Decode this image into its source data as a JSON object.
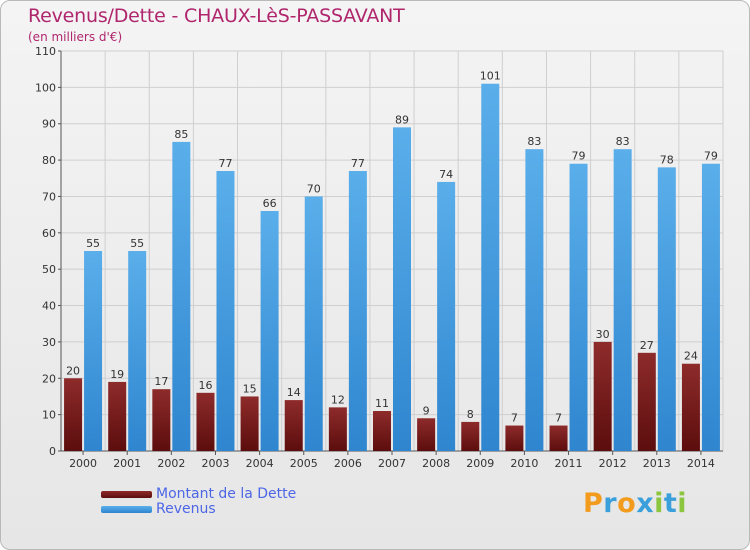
{
  "title": "Revenus/Dette - CHAUX-LèS-PASSAVANT",
  "subtitle": "(en milliers d'€)",
  "legend": {
    "dette_label": "Montant de la Dette",
    "revenus_label": "Revenus"
  },
  "logo_text": "Proxiti",
  "colors": {
    "dette": "#7a1a1a",
    "revenus": "#4a9fe0",
    "title": "#b0266d",
    "legend_text": "#4d66e6"
  },
  "chart_data": {
    "type": "bar",
    "title": "Revenus/Dette - CHAUX-LèS-PASSAVANT",
    "subtitle": "(en milliers d'€)",
    "xlabel": "",
    "ylabel": "",
    "ylim": [
      0,
      110
    ],
    "yticks": [
      0,
      10,
      20,
      30,
      40,
      50,
      60,
      70,
      80,
      90,
      100,
      110
    ],
    "grid": true,
    "legend_position": "bottom-left",
    "categories": [
      "2000",
      "2001",
      "2002",
      "2003",
      "2004",
      "2005",
      "2006",
      "2007",
      "2008",
      "2009",
      "2010",
      "2011",
      "2012",
      "2013",
      "2014"
    ],
    "series": [
      {
        "name": "Montant de la Dette",
        "values": [
          20,
          19,
          17,
          16,
          15,
          14,
          12,
          11,
          9,
          8,
          7,
          7,
          30,
          27,
          24
        ]
      },
      {
        "name": "Revenus",
        "values": [
          55,
          55,
          85,
          77,
          66,
          70,
          77,
          89,
          74,
          101,
          83,
          79,
          83,
          78,
          79
        ]
      }
    ]
  }
}
